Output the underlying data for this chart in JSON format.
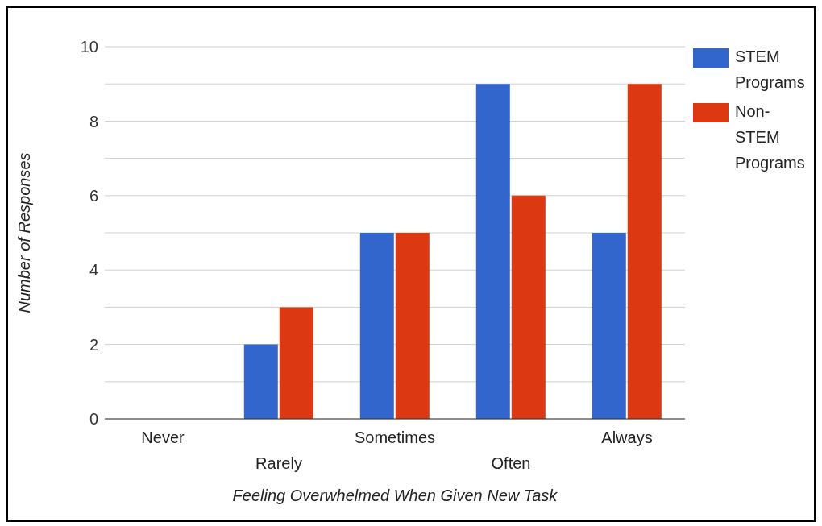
{
  "chart_data": {
    "type": "bar",
    "xlabel": "Feeling Overwhelmed When Given New Task",
    "ylabel": "Number of Responses",
    "categories": [
      "Never",
      "Rarely",
      "Sometimes",
      "Often",
      "Always"
    ],
    "series": [
      {
        "name": "STEM Programs",
        "color": "#3366cc",
        "values": [
          0,
          2,
          5,
          9,
          5
        ]
      },
      {
        "name": "Non-STEM Programs",
        "color": "#dc3912",
        "values": [
          0,
          3,
          5,
          6,
          9
        ]
      }
    ],
    "ylim": [
      0,
      10
    ],
    "yticks": [
      0,
      {
        "value": 1,
        "label": null
      },
      2,
      {
        "value": 3,
        "label": null
      },
      4,
      {
        "value": 5,
        "label": null
      },
      6,
      {
        "value": 7,
        "label": null
      },
      8,
      {
        "value": 9,
        "label": null
      },
      10
    ],
    "grid": "y",
    "legend": "top right"
  }
}
